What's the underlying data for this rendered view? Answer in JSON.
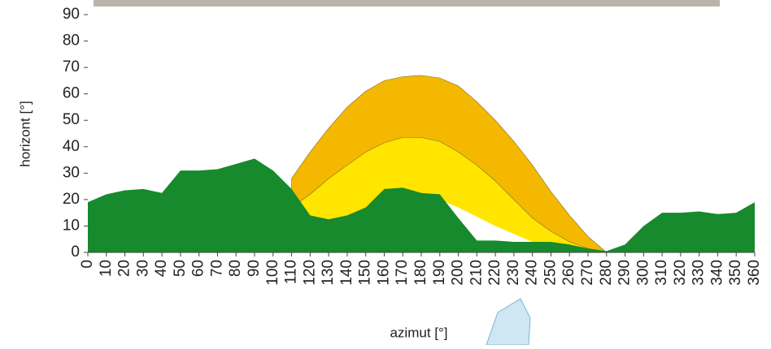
{
  "chart_data": {
    "type": "area",
    "x_label": "azimut [°]",
    "y_label": "horizont [°]",
    "xlim": [
      0,
      360
    ],
    "ylim": [
      0,
      90
    ],
    "xticks": [
      0,
      10,
      20,
      30,
      40,
      50,
      60,
      70,
      80,
      90,
      100,
      110,
      120,
      130,
      140,
      150,
      160,
      170,
      180,
      190,
      200,
      210,
      220,
      230,
      240,
      250,
      260,
      270,
      280,
      290,
      300,
      310,
      320,
      330,
      340,
      350,
      360
    ],
    "yticks": [
      0,
      10,
      20,
      30,
      40,
      50,
      60,
      70,
      80,
      90
    ],
    "series": [
      {
        "color": "#f5b800",
        "x": [
          110,
          120,
          130,
          140,
          150,
          160,
          170,
          180,
          190,
          200,
          210,
          220,
          230,
          240,
          250,
          260,
          270,
          280
        ],
        "values": [
          28,
          38,
          47,
          55,
          61,
          65,
          66.5,
          67,
          66,
          63,
          57,
          50,
          42,
          33,
          23,
          14,
          6,
          0
        ]
      },
      {
        "color": "#ffe500",
        "x": [
          110,
          120,
          130,
          140,
          150,
          160,
          170,
          180,
          190,
          200,
          210,
          220,
          230,
          240,
          250,
          260,
          270,
          280
        ],
        "values": [
          17,
          22,
          28,
          33,
          38,
          41.5,
          43.5,
          43.5,
          42,
          38,
          33,
          27,
          20,
          13,
          8,
          4,
          1.5,
          0
        ]
      },
      {
        "color": "#ffffff",
        "x": [
          180,
          190,
          200,
          210,
          220,
          230,
          240,
          250
        ],
        "values": [
          22,
          20,
          17,
          13.5,
          10,
          7,
          4,
          1.5
        ]
      },
      {
        "color": "#168a2c",
        "x": [
          0,
          10,
          20,
          30,
          40,
          50,
          60,
          70,
          80,
          90,
          100,
          110,
          120,
          130,
          140,
          150,
          160,
          170,
          180,
          190,
          200,
          210,
          220,
          230,
          240,
          250,
          260,
          270,
          280,
          290,
          300,
          310,
          320,
          330,
          340,
          350,
          360
        ],
        "values": [
          19,
          22,
          23.5,
          24,
          22.5,
          31,
          31,
          31.5,
          33.5,
          35.5,
          31,
          24,
          14,
          12.5,
          14,
          17,
          24,
          24.5,
          22.5,
          22,
          13,
          4.5,
          4.5,
          4,
          4,
          4,
          3,
          1.5,
          0.5,
          3,
          10,
          15,
          15,
          15.5,
          14.5,
          15,
          19
        ]
      }
    ]
  }
}
